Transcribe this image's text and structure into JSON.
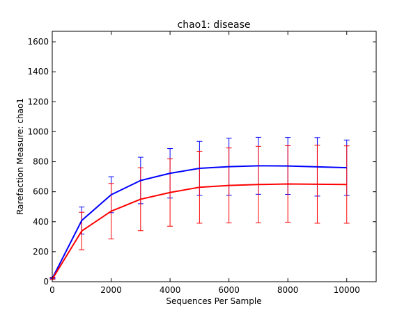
{
  "chart_data": {
    "type": "line",
    "title": "chao1: disease",
    "xlabel": "Sequences Per Sample",
    "ylabel": "Rarefaction Measure: chao1",
    "xlim": [
      0,
      11000
    ],
    "ylim": [
      0,
      1670
    ],
    "xticks": [
      0,
      2000,
      4000,
      6000,
      8000,
      10000
    ],
    "yticks": [
      0,
      200,
      400,
      600,
      800,
      1000,
      1200,
      1400,
      1600
    ],
    "grid": false,
    "legend": "none",
    "x": [
      10,
      1000,
      2000,
      3000,
      4000,
      5000,
      6000,
      7000,
      8000,
      9000,
      10000
    ],
    "series": [
      {
        "color": "#0000ff",
        "values": [
          25,
          408,
          580,
          675,
          723,
          756,
          767,
          773,
          772,
          766,
          760
        ],
        "error": [
          5,
          90,
          120,
          155,
          165,
          180,
          190,
          190,
          190,
          195,
          185
        ]
      },
      {
        "color": "#ff0000",
        "values": [
          20,
          338,
          470,
          550,
          595,
          630,
          642,
          648,
          652,
          650,
          648
        ],
        "error": [
          5,
          125,
          185,
          210,
          225,
          240,
          250,
          255,
          255,
          260,
          258
        ]
      }
    ]
  }
}
